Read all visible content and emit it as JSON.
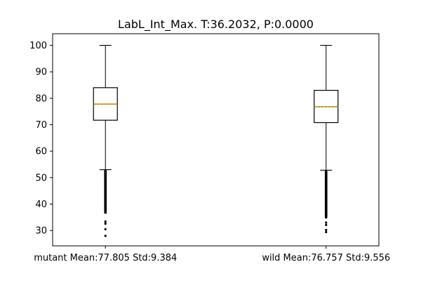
{
  "chart_data": {
    "type": "box",
    "title": "LabL_Int_Max. T:36.2032, P:0.0000",
    "xlabel": "",
    "ylabel": "",
    "ylim": [
      24.2,
      104.4
    ],
    "yticks": [
      30,
      40,
      50,
      60,
      70,
      80,
      90,
      100
    ],
    "grid": false,
    "categories": [
      "mutant Mean:77.805 Std:9.384",
      "wild Mean:76.757 Std:9.556"
    ],
    "boxes": [
      {
        "whisker_low": 53.0,
        "q1": 71.7,
        "median": 77.8,
        "mean": 77.805,
        "q3": 84.0,
        "whisker_high": 100.0,
        "outlier_band": [
          36.8,
          52.8
        ],
        "outliers": [
          33.4,
          32.6,
          30.5,
          28.0
        ]
      },
      {
        "whisker_low": 52.8,
        "q1": 70.8,
        "median": 76.8,
        "mean": 76.757,
        "q3": 83.0,
        "whisker_high": 100.0,
        "outlier_band": [
          35.0,
          52.6
        ],
        "outliers": [
          33.0,
          32.1,
          30.2,
          29.4
        ]
      }
    ],
    "colors": {
      "median": "#ff7f0e",
      "mean": "#2ca02c",
      "box": "#000000"
    }
  }
}
